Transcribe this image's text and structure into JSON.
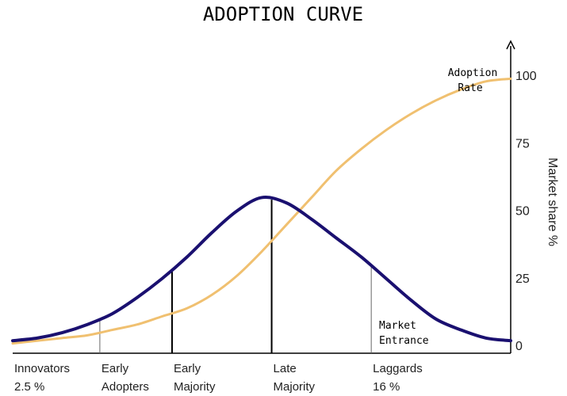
{
  "chart_data": {
    "type": "line",
    "title": "ADOPTION CURVE",
    "ylabel": "Market share %",
    "ylim": [
      0,
      100
    ],
    "yticks": [
      "100",
      "75",
      "50",
      "25",
      "0"
    ],
    "yticks_values": [
      100,
      75,
      50,
      25,
      0
    ],
    "grid": false,
    "x": [
      0,
      5,
      10,
      15,
      20,
      25,
      30,
      35,
      40,
      45,
      50,
      55,
      60,
      65,
      70,
      75,
      80,
      85,
      90,
      95,
      100
    ],
    "series": [
      {
        "name": "Adoption Rate",
        "color": "#f0c070",
        "values": [
          1,
          2,
          3,
          4,
          6,
          8,
          11,
          14,
          19,
          26,
          35,
          45,
          55,
          65,
          73,
          80,
          86,
          91,
          95,
          98,
          99
        ]
      },
      {
        "name": "Market Entrance",
        "color": "#1a1070",
        "values": [
          2,
          3,
          5,
          8,
          12,
          18,
          25,
          33,
          42,
          50,
          55,
          53,
          47,
          40,
          33,
          25,
          17,
          10,
          6,
          3,
          2
        ]
      }
    ],
    "segments": [
      {
        "label": "Innovators",
        "sub": "2.5 %",
        "boundary": 0
      },
      {
        "label": "Early",
        "sub": "Adopters",
        "boundary": 17.5
      },
      {
        "label": "Early",
        "sub": "Majority",
        "boundary": 32
      },
      {
        "label": "Late",
        "sub": "Majority",
        "boundary": 52
      },
      {
        "label": "Laggards",
        "sub": "16 %",
        "boundary": 72
      }
    ],
    "annotations": {
      "adoption_rate_line1": "Adoption",
      "adoption_rate_line2": "Rate",
      "market_entrance_line1": "Market",
      "market_entrance_line2": "Entrance"
    }
  }
}
